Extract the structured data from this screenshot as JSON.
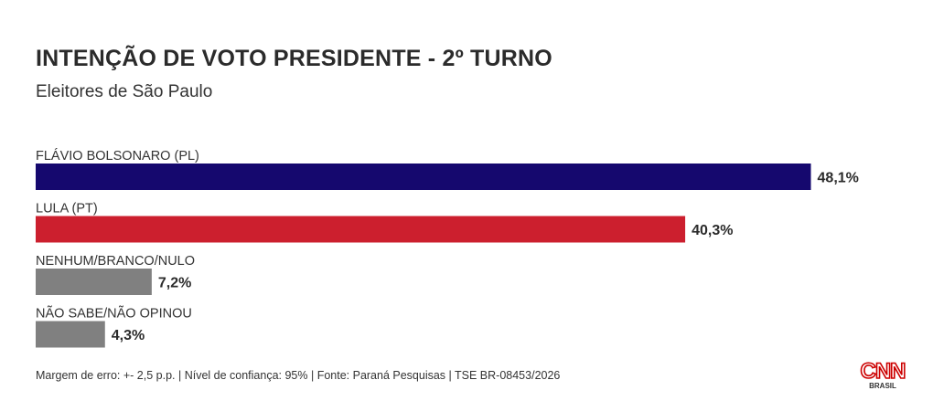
{
  "chart_data": {
    "type": "bar",
    "orientation": "horizontal",
    "title": "INTENÇÃO DE VOTO PRESIDENTE - 2º TURNO",
    "subtitle": "Eleitores de São Paulo",
    "categories": [
      "FLÁVIO BOLSONARO (PL)",
      "LULA (PT)",
      "NENHUM/BRANCO/NULO",
      "NÃO SABE/NÃO OPINOU"
    ],
    "values": [
      48.1,
      40.3,
      7.2,
      4.3
    ],
    "value_labels": [
      "48,1%",
      "40,3%",
      "7,2%",
      "4,3%"
    ],
    "colors": [
      "#15086e",
      "#cc1f2e",
      "#808080",
      "#808080"
    ],
    "xlim": [
      0,
      50
    ],
    "grid": false,
    "legend": "none"
  },
  "footer": {
    "note": "Margem de erro: +- 2,5 p.p. | Nível de confiança: 95% | Fonte: Paraná Pesquisas | TSE BR-08453/2026"
  },
  "brand": {
    "logo_text": "CNN",
    "logo_sub": "BRASIL",
    "color": "#cc0000"
  }
}
